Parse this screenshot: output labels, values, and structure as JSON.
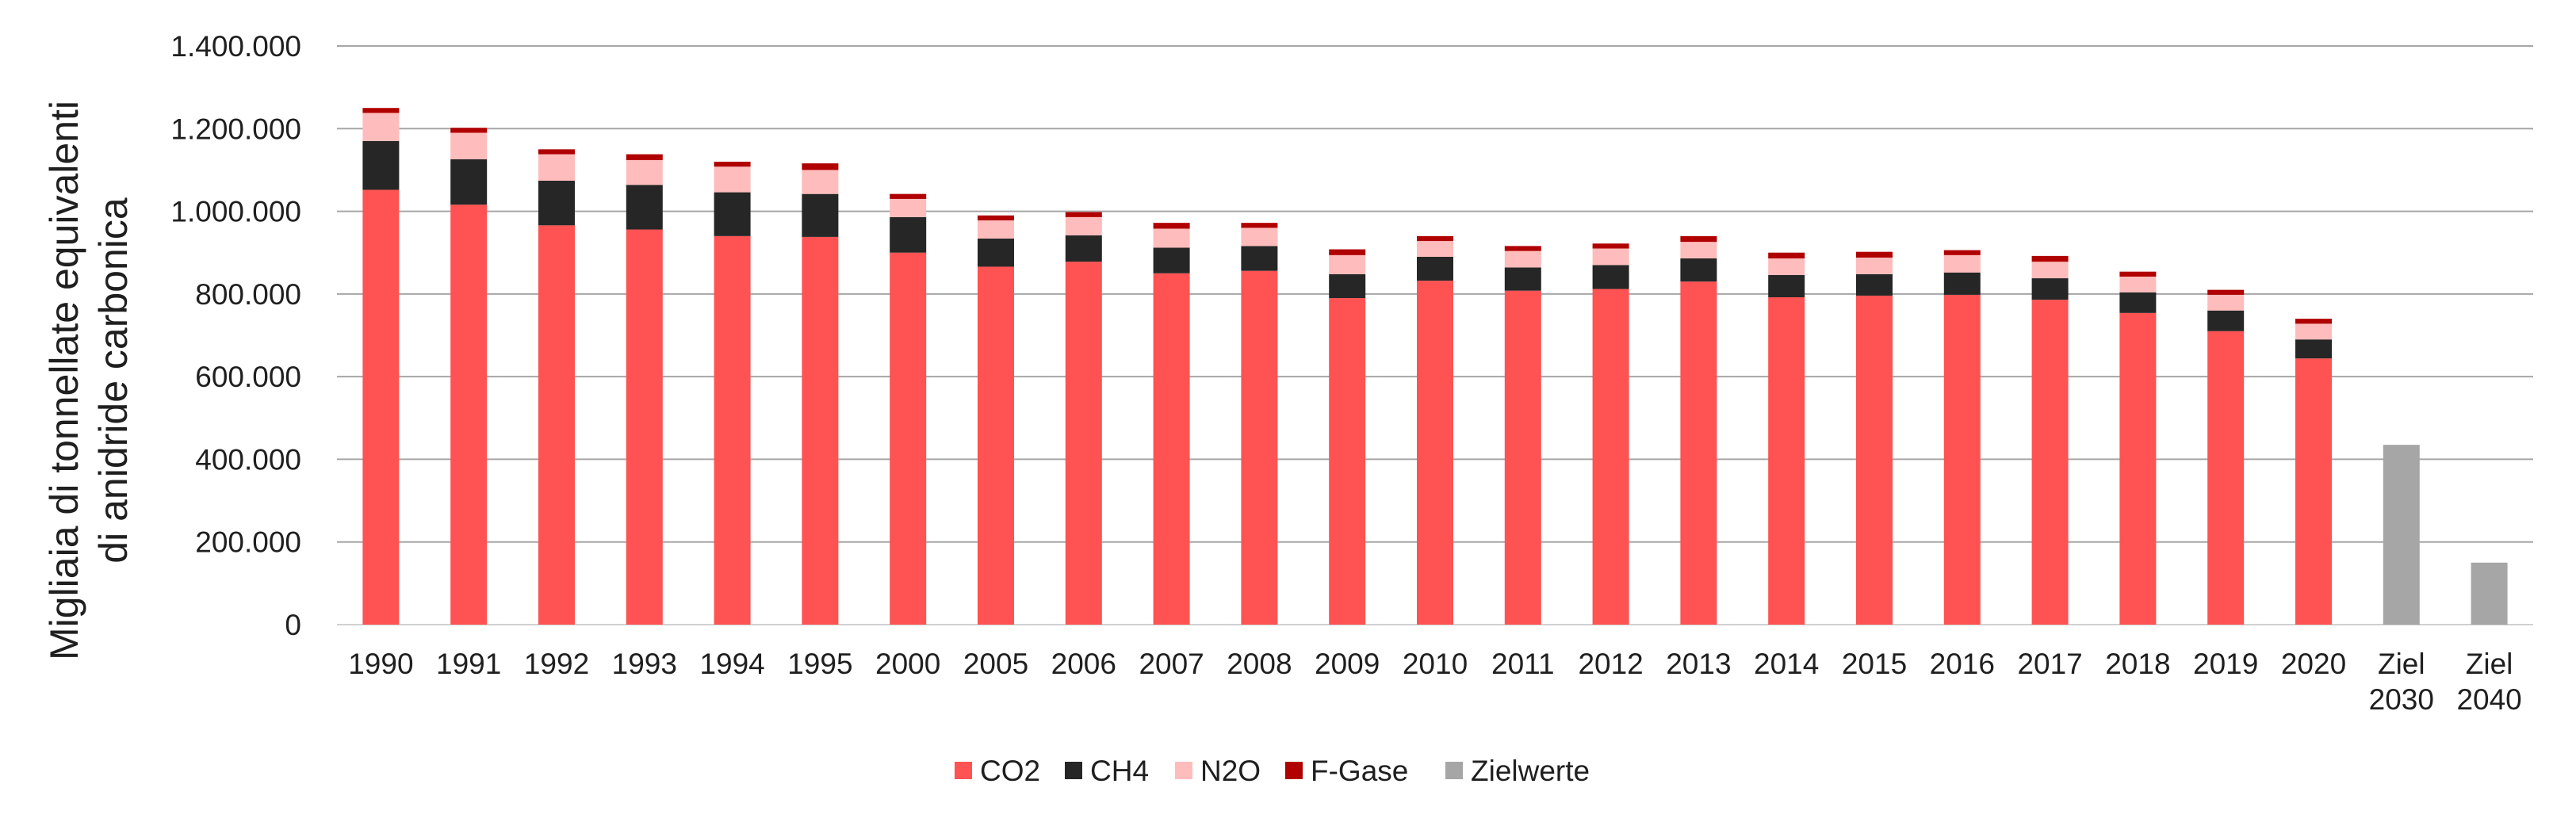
{
  "chart_data": {
    "type": "bar",
    "stacked": true,
    "title": "",
    "xlabel": "",
    "ylabel": [
      "Migliaia di tonnellate equivalenti",
      "di anidride carbonica"
    ],
    "ylim": [
      0,
      1400000
    ],
    "yticks": [
      0,
      200000,
      400000,
      600000,
      800000,
      1000000,
      1200000,
      1400000
    ],
    "ytick_labels": [
      "0",
      "200.000",
      "400.000",
      "600.000",
      "800.000",
      "1.000.000",
      "1.200.000",
      "1.400.000"
    ],
    "grid": true,
    "legend_position": "bottom",
    "categories": [
      [
        "1990"
      ],
      [
        "1991"
      ],
      [
        "1992"
      ],
      [
        "1993"
      ],
      [
        "1994"
      ],
      [
        "1995"
      ],
      [
        "2000"
      ],
      [
        "2005"
      ],
      [
        "2006"
      ],
      [
        "2007"
      ],
      [
        "2008"
      ],
      [
        "2009"
      ],
      [
        "2010"
      ],
      [
        "2011"
      ],
      [
        "2012"
      ],
      [
        "2013"
      ],
      [
        "2014"
      ],
      [
        "2015"
      ],
      [
        "2016"
      ],
      [
        "2017"
      ],
      [
        "2018"
      ],
      [
        "2019"
      ],
      [
        "2020"
      ],
      [
        "Ziel",
        "2030"
      ],
      [
        "Ziel",
        "2040"
      ]
    ],
    "series": [
      {
        "name": "CO2",
        "color": "#ff5252",
        "values": [
          1052000,
          1016000,
          966000,
          956000,
          940000,
          938000,
          900000,
          866000,
          878000,
          850000,
          856000,
          790000,
          832000,
          808000,
          812000,
          830000,
          792000,
          796000,
          798000,
          786000,
          754000,
          710000,
          644000,
          0,
          0
        ]
      },
      {
        "name": "CH4",
        "color": "#262626",
        "values": [
          118000,
          110000,
          108000,
          108000,
          106000,
          104000,
          86000,
          68000,
          64000,
          62000,
          60000,
          58000,
          58000,
          56000,
          58000,
          56000,
          54000,
          52000,
          54000,
          52000,
          50000,
          50000,
          46000,
          0,
          0
        ]
      },
      {
        "name": "N2O",
        "color": "#ffbcbc",
        "values": [
          68000,
          64000,
          64000,
          60000,
          62000,
          58000,
          44000,
          44000,
          44000,
          46000,
          44000,
          46000,
          38000,
          40000,
          40000,
          40000,
          40000,
          40000,
          42000,
          40000,
          38000,
          38000,
          38000,
          0,
          0
        ]
      },
      {
        "name": "F-Gase",
        "color": "#b00000",
        "values": [
          12000,
          12000,
          12000,
          14000,
          12000,
          16000,
          12000,
          12000,
          12000,
          14000,
          12000,
          14000,
          12000,
          12000,
          12000,
          14000,
          14000,
          14000,
          12000,
          14000,
          12000,
          12000,
          12000,
          0,
          0
        ]
      },
      {
        "name": "Zielwerte",
        "color": "#a6a6a6",
        "values": [
          0,
          0,
          0,
          0,
          0,
          0,
          0,
          0,
          0,
          0,
          0,
          0,
          0,
          0,
          0,
          0,
          0,
          0,
          0,
          0,
          0,
          0,
          0,
          435000,
          150000
        ]
      }
    ]
  }
}
